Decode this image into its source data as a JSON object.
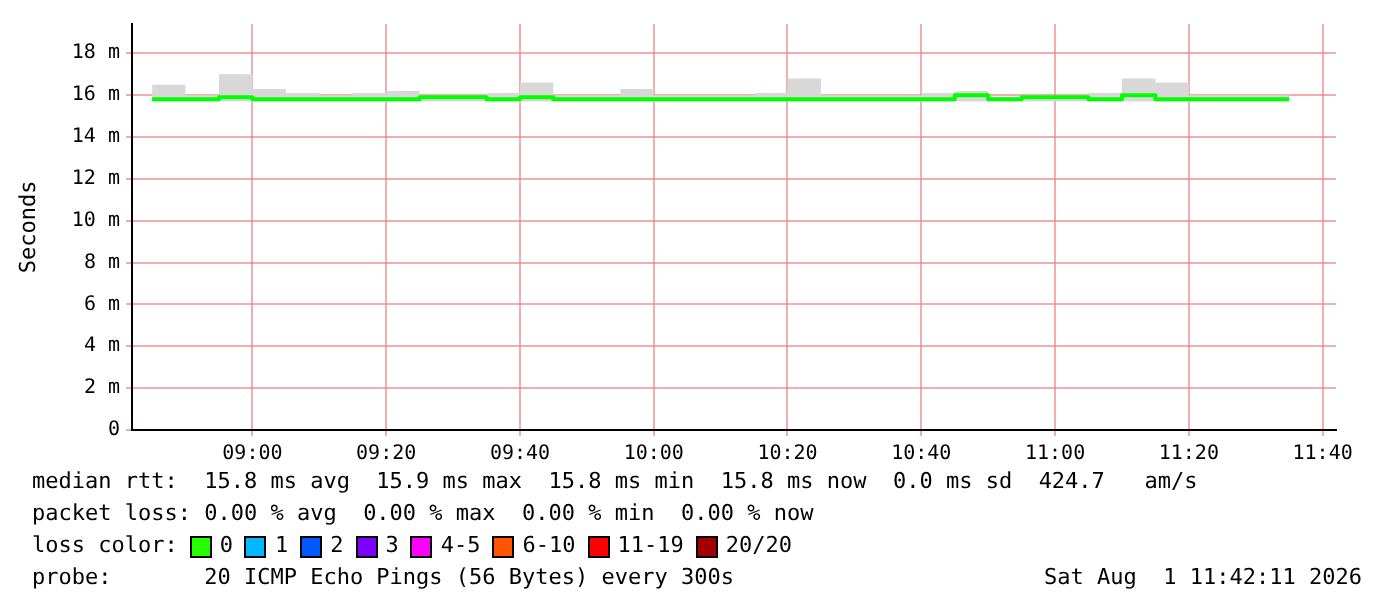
{
  "chart_data": {
    "type": "step",
    "ylabel": "Seconds",
    "x": [
      8.75,
      8.8333,
      8.9167,
      9,
      9.0833,
      9.1667,
      9.25,
      9.3333,
      9.4167,
      9.5,
      9.5833,
      9.6667,
      9.75,
      9.8333,
      9.9167,
      10,
      10.0833,
      10.1667,
      10.25,
      10.3333,
      10.4167,
      10.5,
      10.5833,
      10.6667,
      10.75,
      10.8333,
      10.9167,
      11,
      11.0833,
      11.1667,
      11.25,
      11.3333,
      11.4167,
      11.5,
      11.5833
    ],
    "series": [
      {
        "color": "#00ff00",
        "values": [
          15.8,
          15.8,
          15.9,
          15.8,
          15.8,
          15.8,
          15.8,
          15.8,
          15.9,
          15.9,
          15.8,
          15.9,
          15.8,
          15.8,
          15.8,
          15.8,
          15.8,
          15.8,
          15.8,
          15.8,
          15.8,
          15.8,
          15.8,
          15.8,
          16.0,
          15.8,
          15.9,
          15.9,
          15.8,
          16.0,
          15.8,
          15.8,
          15.8,
          15.8,
          15.8
        ],
        "lower": [
          15.7,
          15.7,
          15.7,
          15.7,
          15.7,
          15.7,
          15.7,
          15.7,
          15.7,
          15.7,
          15.7,
          15.7,
          15.7,
          15.7,
          15.7,
          15.7,
          15.7,
          15.7,
          15.7,
          15.7,
          15.7,
          15.7,
          15.7,
          15.7,
          15.7,
          15.7,
          15.7,
          15.7,
          15.7,
          15.7,
          15.7,
          15.7,
          15.7,
          15.7,
          15.7
        ],
        "upper": [
          16.5,
          16.0,
          17.0,
          16.3,
          16.1,
          16.0,
          16.1,
          16.2,
          16.0,
          16.0,
          16.1,
          16.6,
          16.0,
          16.0,
          16.3,
          16.0,
          16.0,
          16.0,
          16.1,
          16.8,
          16.0,
          16.0,
          16.0,
          16.1,
          16.2,
          15.9,
          16.0,
          16.0,
          16.1,
          16.8,
          16.6,
          16.0,
          16.0,
          16.0,
          16.2
        ]
      }
    ],
    "xlim": [
      8.7,
      11.7
    ],
    "xticks": [
      {
        "value": 9,
        "label": "09:00"
      },
      {
        "value": 9.3333,
        "label": "09:20"
      },
      {
        "value": 9.6667,
        "label": "09:40"
      },
      {
        "value": 10,
        "label": "10:00"
      },
      {
        "value": 10.3333,
        "label": "10:20"
      },
      {
        "value": 10.6667,
        "label": "10:40"
      },
      {
        "value": 11,
        "label": "11:00"
      },
      {
        "value": 11.3333,
        "label": "11:20"
      },
      {
        "value": 11.6667,
        "label": "11:40"
      }
    ],
    "ylim": [
      0,
      19.4
    ],
    "yticks": [
      0,
      {
        "value": 2,
        "label": "2 m"
      },
      {
        "value": 4,
        "label": "4 m"
      },
      {
        "value": 6,
        "label": "6 m"
      },
      {
        "value": 8,
        "label": "8 m"
      },
      {
        "value": 10,
        "label": "10 m"
      },
      {
        "value": 12,
        "label": "12 m"
      },
      {
        "value": 14,
        "label": "14 m"
      },
      {
        "value": 16,
        "label": "16 m"
      },
      {
        "value": 18,
        "label": "18 m"
      }
    ],
    "grid": true,
    "annotations": [
      "median rtt:  15.8 ms avg  15.9 ms max  15.8 ms min  15.8 ms now  0.0 ms sd  424.7   am/s",
      "packet loss: 0.00 % avg  0.00 % max  0.00 % min  0.00 % now",
      "loss color:",
      "0",
      "1",
      "2",
      "3",
      "4-5",
      "6-10",
      "11-19",
      "20/20",
      "probe:       20 ICMP Echo Pings (56 Bytes) every 300s",
      "Sat Aug  1 11:42:11 2026"
    ]
  }
}
